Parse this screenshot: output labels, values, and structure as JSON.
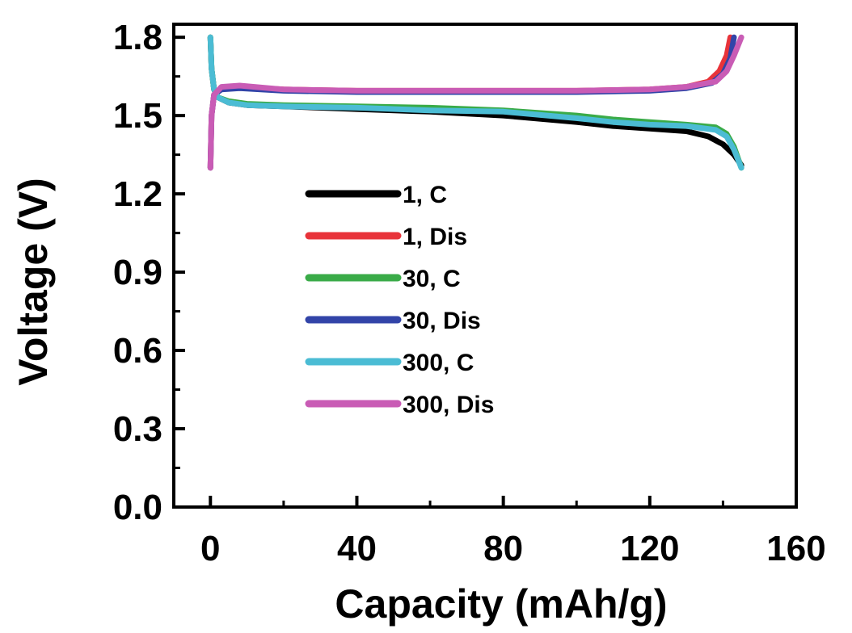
{
  "chart_data": {
    "type": "line",
    "title": "",
    "xlabel": "Capacity (mAh/g)",
    "ylabel": "Voltage (V)",
    "xlim": [
      -10,
      160
    ],
    "ylim": [
      0,
      1.85
    ],
    "xticks": [
      0,
      40,
      80,
      120,
      160
    ],
    "xtick_labels": [
      "0",
      "40",
      "80",
      "120",
      "160"
    ],
    "yticks": [
      0,
      0.3,
      0.6,
      0.9,
      1.2,
      1.5,
      1.8
    ],
    "ytick_labels": [
      "0.0",
      "0.3",
      "0.6",
      "0.9",
      "1.2",
      "1.5",
      "1.8"
    ],
    "grid": false,
    "legend_position": "center-left",
    "series": [
      {
        "name": "1, C",
        "color": "#000000",
        "points": [
          [
            0,
            1.8
          ],
          [
            0.3,
            1.68
          ],
          [
            1,
            1.6
          ],
          [
            2,
            1.57
          ],
          [
            5,
            1.55
          ],
          [
            10,
            1.54
          ],
          [
            20,
            1.535
          ],
          [
            40,
            1.525
          ],
          [
            60,
            1.515
          ],
          [
            80,
            1.5
          ],
          [
            100,
            1.475
          ],
          [
            110,
            1.46
          ],
          [
            120,
            1.45
          ],
          [
            130,
            1.44
          ],
          [
            136,
            1.42
          ],
          [
            140,
            1.39
          ],
          [
            143,
            1.35
          ],
          [
            145,
            1.31
          ]
        ]
      },
      {
        "name": "1, Dis",
        "color": "#e8333a",
        "points": [
          [
            0,
            1.3
          ],
          [
            0.3,
            1.5
          ],
          [
            1,
            1.58
          ],
          [
            3,
            1.605
          ],
          [
            8,
            1.61
          ],
          [
            20,
            1.6
          ],
          [
            40,
            1.595
          ],
          [
            60,
            1.595
          ],
          [
            80,
            1.595
          ],
          [
            100,
            1.595
          ],
          [
            120,
            1.6
          ],
          [
            130,
            1.61
          ],
          [
            136,
            1.63
          ],
          [
            139,
            1.67
          ],
          [
            141,
            1.73
          ],
          [
            142,
            1.8
          ]
        ]
      },
      {
        "name": "30, C",
        "color": "#3aab48",
        "points": [
          [
            0,
            1.8
          ],
          [
            0.3,
            1.68
          ],
          [
            1,
            1.6
          ],
          [
            2,
            1.57
          ],
          [
            5,
            1.555
          ],
          [
            10,
            1.545
          ],
          [
            20,
            1.54
          ],
          [
            40,
            1.535
          ],
          [
            60,
            1.53
          ],
          [
            80,
            1.52
          ],
          [
            100,
            1.5
          ],
          [
            110,
            1.485
          ],
          [
            120,
            1.475
          ],
          [
            130,
            1.465
          ],
          [
            138,
            1.455
          ],
          [
            141,
            1.43
          ],
          [
            143,
            1.38
          ],
          [
            145,
            1.3
          ]
        ]
      },
      {
        "name": "30, Dis",
        "color": "#3244a8",
        "points": [
          [
            0,
            1.3
          ],
          [
            0.3,
            1.5
          ],
          [
            1,
            1.58
          ],
          [
            3,
            1.6
          ],
          [
            8,
            1.605
          ],
          [
            20,
            1.595
          ],
          [
            40,
            1.59
          ],
          [
            60,
            1.59
          ],
          [
            80,
            1.59
          ],
          [
            100,
            1.59
          ],
          [
            120,
            1.595
          ],
          [
            130,
            1.605
          ],
          [
            137,
            1.625
          ],
          [
            140,
            1.66
          ],
          [
            142,
            1.72
          ],
          [
            143,
            1.8
          ]
        ]
      },
      {
        "name": "300, C",
        "color": "#4bbcd4",
        "points": [
          [
            0,
            1.8
          ],
          [
            0.3,
            1.68
          ],
          [
            1,
            1.6
          ],
          [
            2,
            1.57
          ],
          [
            5,
            1.55
          ],
          [
            10,
            1.54
          ],
          [
            20,
            1.535
          ],
          [
            40,
            1.53
          ],
          [
            60,
            1.52
          ],
          [
            80,
            1.515
          ],
          [
            100,
            1.49
          ],
          [
            110,
            1.475
          ],
          [
            120,
            1.465
          ],
          [
            130,
            1.46
          ],
          [
            138,
            1.445
          ],
          [
            141,
            1.42
          ],
          [
            143,
            1.37
          ],
          [
            145,
            1.3
          ]
        ]
      },
      {
        "name": "300, Dis",
        "color": "#c95cb5",
        "points": [
          [
            0,
            1.3
          ],
          [
            0.3,
            1.5
          ],
          [
            1,
            1.58
          ],
          [
            3,
            1.61
          ],
          [
            8,
            1.615
          ],
          [
            20,
            1.6
          ],
          [
            40,
            1.595
          ],
          [
            60,
            1.595
          ],
          [
            80,
            1.595
          ],
          [
            100,
            1.595
          ],
          [
            120,
            1.6
          ],
          [
            130,
            1.61
          ],
          [
            138,
            1.63
          ],
          [
            141,
            1.67
          ],
          [
            143,
            1.73
          ],
          [
            145,
            1.8
          ]
        ]
      }
    ]
  }
}
